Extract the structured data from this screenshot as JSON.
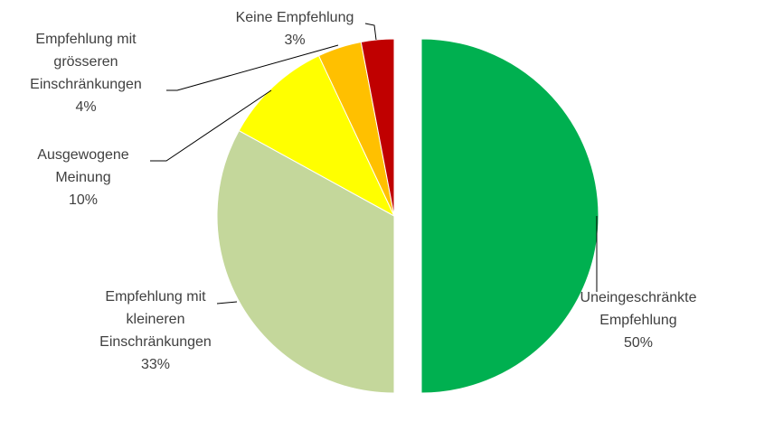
{
  "chart_data": {
    "type": "pie",
    "title": "",
    "slices": [
      {
        "name": "Uneingeschränkte Empfehlung",
        "label_lines": [
          "Uneingeschränkte",
          "Empfehlung",
          "50%"
        ],
        "value": 50,
        "color": "#00b050",
        "exploded": true
      },
      {
        "name": "Empfehlung mit kleineren Einschränkungen",
        "label_lines": [
          "Empfehlung mit",
          "kleineren",
          "Einschränkungen",
          "33%"
        ],
        "value": 33,
        "color": "#c4d79b",
        "exploded": false
      },
      {
        "name": "Ausgewogene Meinung",
        "label_lines": [
          "Ausgewogene",
          "Meinung",
          "10%"
        ],
        "value": 10,
        "color": "#ffff00",
        "exploded": false
      },
      {
        "name": "Empfehlung mit grösseren Einschränkungen",
        "label_lines": [
          "Empfehlung mit",
          "grösseren",
          "Einschränkungen",
          "4%"
        ],
        "value": 4,
        "color": "#ffc000",
        "exploded": false
      },
      {
        "name": "Keine Empfehlung",
        "label_lines": [
          "Keine Empfehlung",
          "3%"
        ],
        "value": 3,
        "color": "#c00000",
        "exploded": false
      }
    ]
  }
}
